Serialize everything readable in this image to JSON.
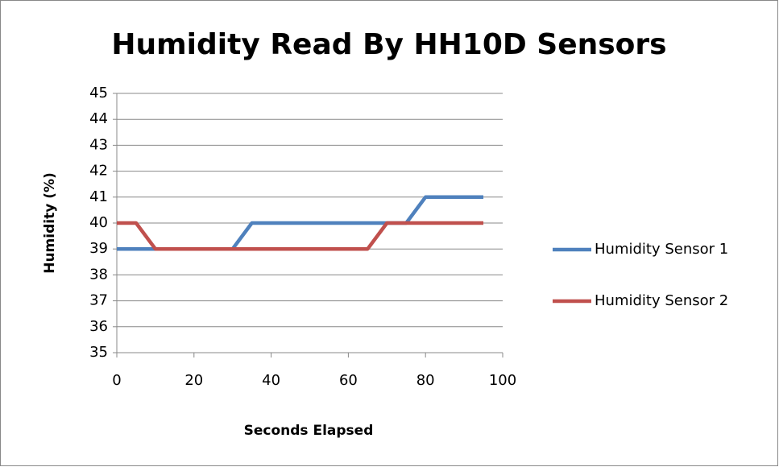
{
  "chart_data": {
    "type": "line",
    "title": "Humidity Read By HH10D Sensors",
    "x_label": "Seconds Elapsed",
    "y_label": "Humidity (%)",
    "x": [
      0,
      5,
      10,
      15,
      20,
      25,
      30,
      35,
      40,
      45,
      50,
      55,
      60,
      65,
      70,
      75,
      80,
      85,
      90,
      95
    ],
    "series": [
      {
        "name": "Humidity Sensor 1",
        "color": "#4f81bd",
        "values": [
          39,
          39,
          39,
          39,
          39,
          39,
          39,
          40,
          40,
          40,
          40,
          40,
          40,
          40,
          40,
          40,
          41,
          41,
          41,
          41
        ]
      },
      {
        "name": "Humidity Sensor 2",
        "color": "#c0504d",
        "values": [
          40,
          40,
          39,
          39,
          39,
          39,
          39,
          39,
          39,
          39,
          39,
          39,
          39,
          39,
          40,
          40,
          40,
          40,
          40,
          40
        ]
      }
    ],
    "xlim": [
      0,
      100
    ],
    "xticks": [
      0,
      20,
      40,
      60,
      80,
      100
    ],
    "ylim": [
      35,
      45
    ],
    "yticks": [
      35,
      36,
      37,
      38,
      39,
      40,
      41,
      42,
      43,
      44,
      45
    ],
    "grid": true,
    "legend": "right"
  }
}
